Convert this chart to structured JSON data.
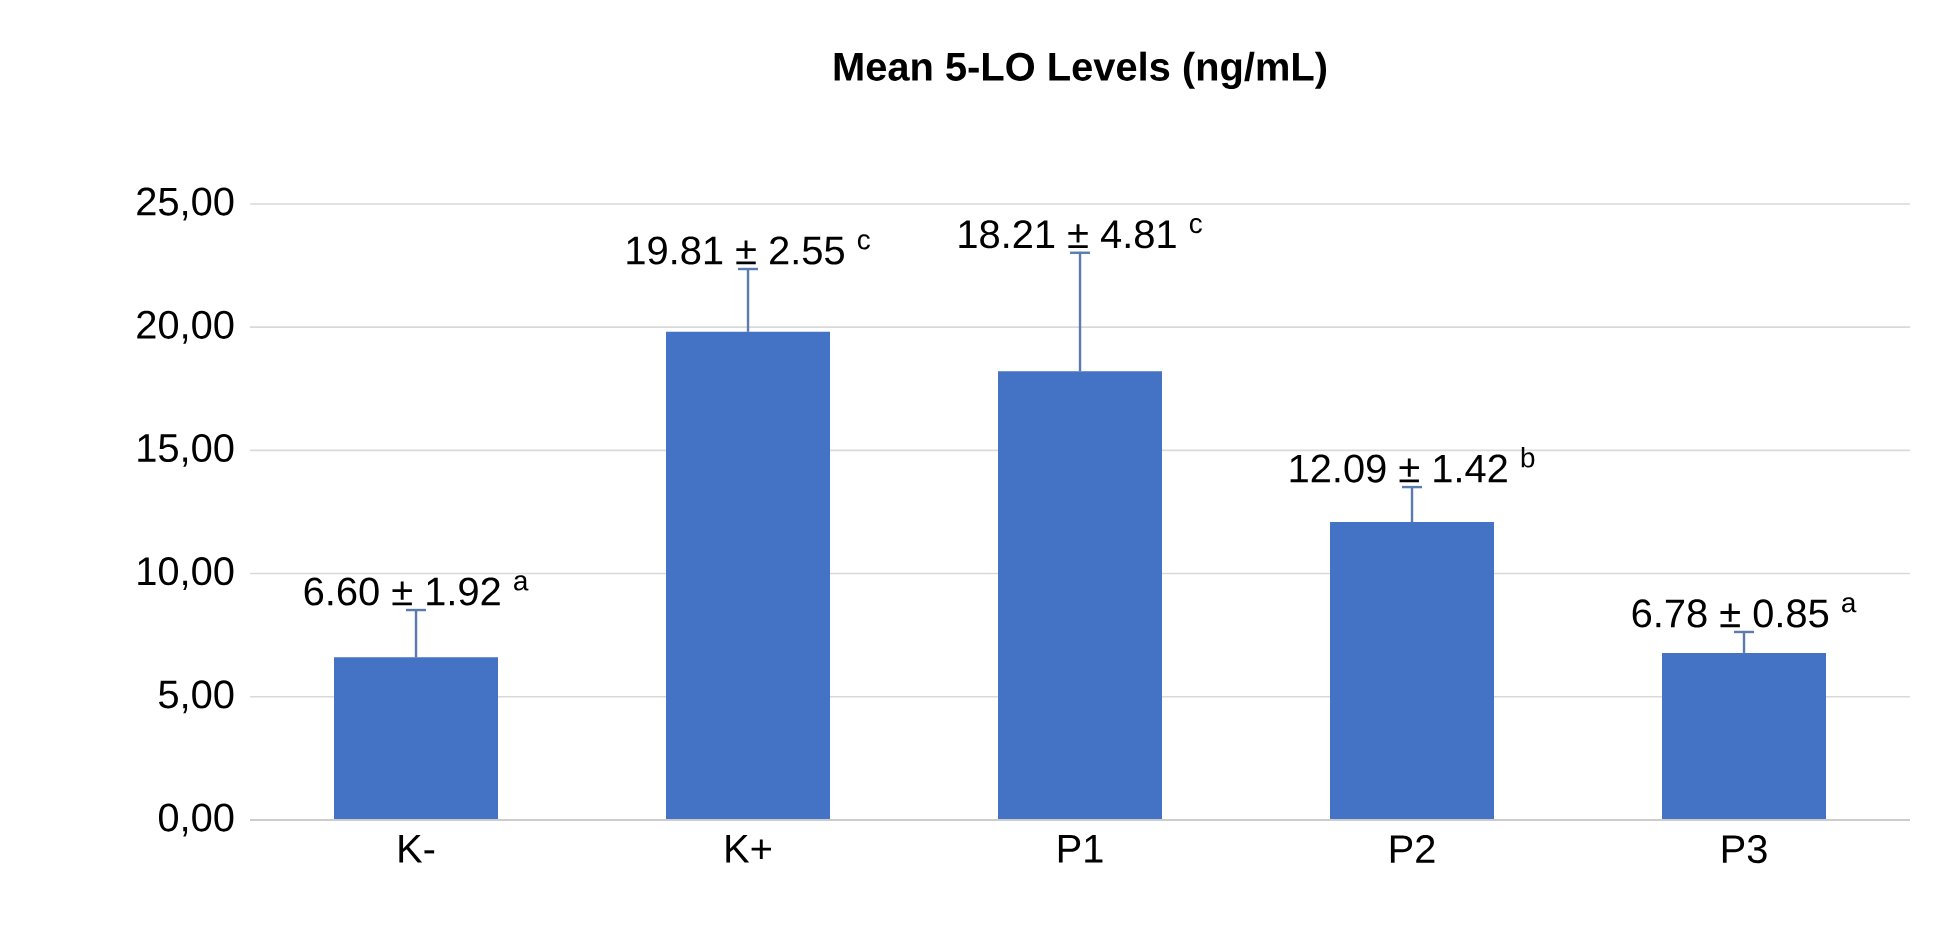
{
  "chart_data": {
    "type": "bar",
    "title": "Mean 5-LO Levels (ng/mL)",
    "categories": [
      "K-",
      "K+",
      "P1",
      "P2",
      "P3"
    ],
    "values": [
      6.6,
      19.81,
      18.21,
      12.09,
      6.78
    ],
    "errors": [
      [
        6.6,
        8.52
      ],
      [
        19.81,
        22.36
      ],
      [
        18.21,
        23.02
      ],
      [
        12.09,
        13.51
      ],
      [
        6.78,
        7.63
      ]
    ],
    "color": "#4472c4",
    "value_labels": [
      "6.60 ± 1.92 $^{a}$",
      "19.81 ± 2.55 $^{c}$",
      "18.21 ± 4.81 $^{c}$",
      "12.09 ± 1.42 $^{b}$",
      "6.78 ± 0.85 $^{a}$"
    ],
    "ylim": [
      0,
      25
    ],
    "yticks": [
      {
        "value": 0,
        "label": "0,00"
      },
      {
        "value": 5,
        "label": "5,00"
      },
      {
        "value": 10,
        "label": "10,00"
      },
      {
        "value": 15,
        "label": "15,00"
      },
      {
        "value": 20,
        "label": "20,00"
      },
      {
        "value": 25,
        "label": "25,00"
      }
    ],
    "grid": "y"
  }
}
